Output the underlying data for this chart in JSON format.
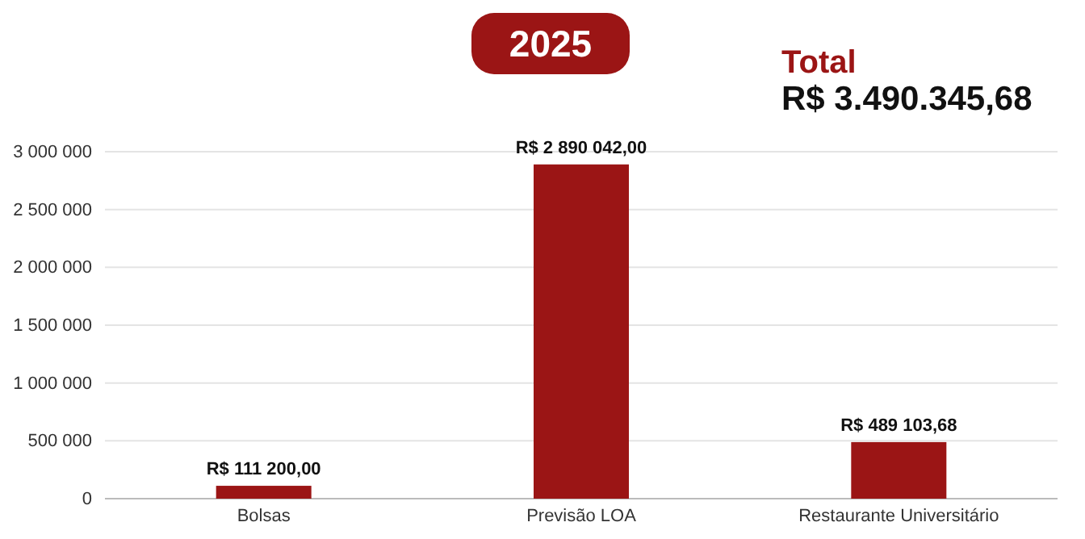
{
  "chart_data": {
    "type": "bar",
    "title": "2025",
    "annotations": [
      "Total",
      "R$ 3.490.345,68"
    ],
    "categories": [
      "Bolsas",
      "Previsão LOA",
      "Restaurante Universitário"
    ],
    "values": [
      111200,
      2890042,
      489103.68
    ],
    "value_labels": [
      "R$ 111 200,00",
      "R$ 2 890 042,00",
      "R$ 489 103,68"
    ],
    "color": "#9b1515",
    "ylim": [
      0,
      3000000
    ],
    "yticks": [
      {
        "value": 0,
        "label": "0"
      },
      {
        "value": 500000,
        "label": "500 000"
      },
      {
        "value": 1000000,
        "label": "1 000 000"
      },
      {
        "value": 1500000,
        "label": "1 500 000"
      },
      {
        "value": 2000000,
        "label": "2 000 000"
      },
      {
        "value": 2500000,
        "label": "2 500 000"
      },
      {
        "value": 3000000,
        "label": "3 000 000"
      }
    ],
    "grid": "y"
  }
}
